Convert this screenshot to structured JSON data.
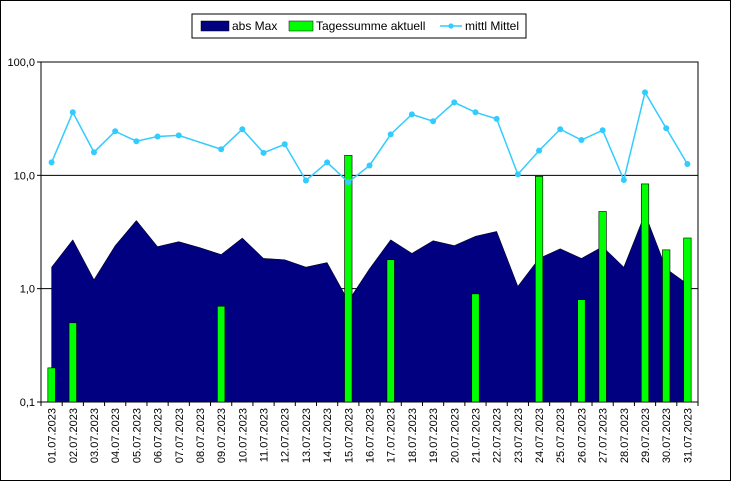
{
  "chart_data": {
    "type": "area",
    "scale": "log",
    "ylim": [
      0.1,
      100
    ],
    "grid": true,
    "legend_position": "top-center",
    "yticks": [
      "0,1",
      "1,0",
      "10,0",
      "100,0"
    ],
    "categories": [
      "01.07.2023",
      "02.07.2023",
      "03.07.2023",
      "04.07.2023",
      "05.07.2023",
      "06.07.2023",
      "07.07.2023",
      "08.07.2023",
      "09.07.2023",
      "10.07.2023",
      "11.07.2023",
      "12.07.2023",
      "13.07.2023",
      "14.07.2023",
      "15.07.2023",
      "16.07.2023",
      "17.07.2023",
      "18.07.2023",
      "19.07.2023",
      "20.07.2023",
      "21.07.2023",
      "22.07.2023",
      "23.07.2023",
      "24.07.2023",
      "25.07.2023",
      "26.07.2023",
      "27.07.2023",
      "28.07.2023",
      "29.07.2023",
      "30.07.2023",
      "31.07.2023"
    ],
    "series": [
      {
        "name": "abs Max",
        "type": "area",
        "color": "#000080",
        "values": [
          1.55,
          2.7,
          1.2,
          2.4,
          4.0,
          2.35,
          2.6,
          2.3,
          2.0,
          2.8,
          1.85,
          1.8,
          1.55,
          1.7,
          0.78,
          1.5,
          2.7,
          2.05,
          2.65,
          2.4,
          2.9,
          3.2,
          1.05,
          1.85,
          2.25,
          1.85,
          2.35,
          1.55,
          4.6,
          1.5,
          1.1
        ]
      },
      {
        "name": "Tagessumme aktuell",
        "type": "bar",
        "color": "#00ff00",
        "values": [
          0.2,
          0.5,
          null,
          null,
          null,
          null,
          null,
          null,
          0.7,
          null,
          null,
          null,
          null,
          null,
          15.0,
          null,
          1.8,
          null,
          null,
          null,
          0.9,
          null,
          null,
          9.8,
          null,
          0.8,
          4.8,
          null,
          8.4,
          2.2,
          2.8
        ]
      },
      {
        "name": "mittl Mittel",
        "type": "line",
        "color": "#33ccff",
        "values": [
          13.0,
          36.0,
          16.0,
          24.5,
          20.0,
          22.0,
          22.5,
          null,
          17.0,
          25.5,
          15.8,
          18.8,
          9.0,
          13.0,
          8.7,
          12.2,
          23.0,
          34.5,
          30.0,
          44.0,
          36.0,
          31.5,
          10.2,
          16.5,
          25.5,
          20.5,
          25.0,
          9.1,
          54.0,
          26.0,
          12.6
        ]
      }
    ]
  }
}
